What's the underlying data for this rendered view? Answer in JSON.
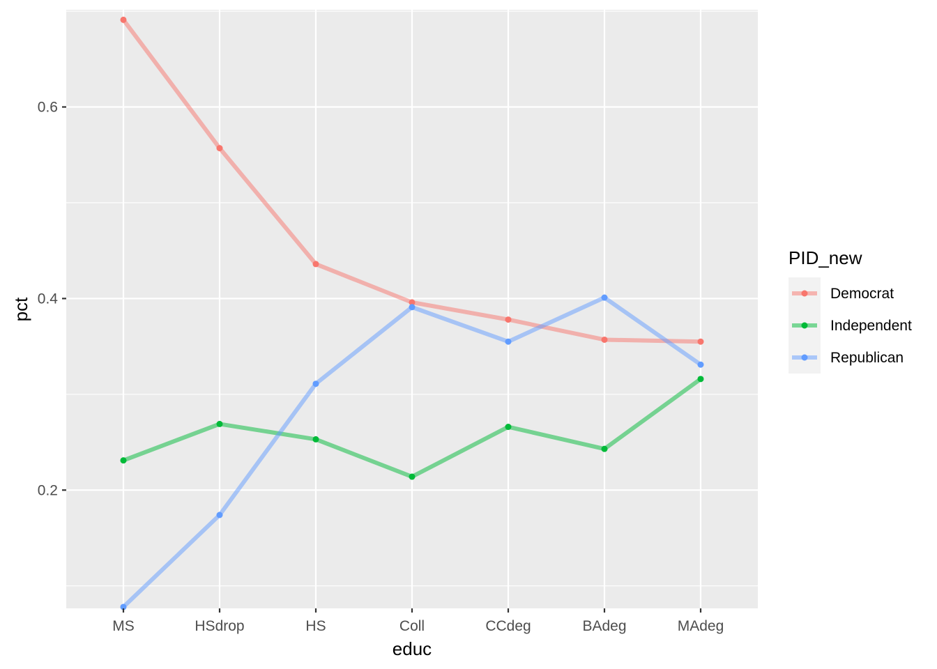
{
  "chart_data": {
    "type": "line",
    "xlabel": "educ",
    "ylabel": "pct",
    "categories": [
      "MS",
      "HSdrop",
      "HS",
      "Coll",
      "CCdeg",
      "BAdeg",
      "MAdeg"
    ],
    "ylim": [
      0.0765,
      0.7015
    ],
    "yticks": [
      0.2,
      0.4,
      0.6
    ],
    "ytick_labels": [
      "0.2",
      "0.4",
      "0.6"
    ],
    "grid": true,
    "legend": {
      "title": "PID_new",
      "position": "right"
    },
    "series": [
      {
        "name": "Democrat",
        "color": "#F8766D",
        "values": [
          0.691,
          0.557,
          0.436,
          0.396,
          0.378,
          0.357,
          0.355
        ]
      },
      {
        "name": "Independent",
        "color": "#00BA38",
        "values": [
          0.231,
          0.269,
          0.253,
          0.214,
          0.266,
          0.243,
          0.316
        ]
      },
      {
        "name": "Republican",
        "color": "#619CFF",
        "values": [
          0.078,
          0.174,
          0.311,
          0.391,
          0.355,
          0.401,
          0.331
        ]
      }
    ]
  }
}
